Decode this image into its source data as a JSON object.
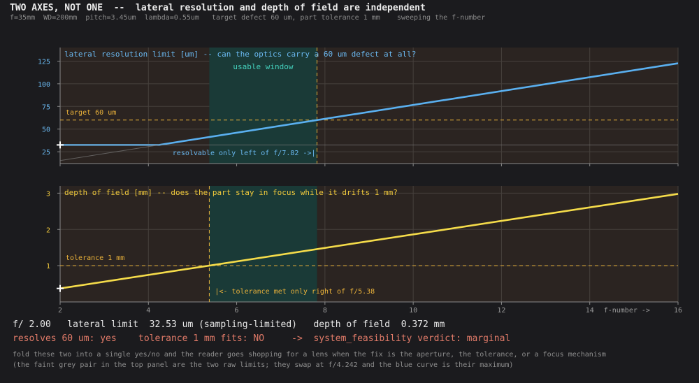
{
  "header": {
    "title": "TWO AXES, NOT ONE  --  lateral resolution and depth of field are independent",
    "subtitle": "f=35mm  WD=200mm  pitch=3.45um  lambda=0.55um   target defect 60 um, part tolerance 1 mm    sweeping the f-number"
  },
  "colors": {
    "panel_bg": "#2b2421",
    "window_fill": "#1a3a37",
    "resolution_line": "#5ab0f0",
    "dof_line": "#f5dc4a",
    "threshold_line": "#e9b13a",
    "grid": "#46403c",
    "verdict_text": "#e07a68"
  },
  "chart_data": [
    {
      "type": "line",
      "title": "lateral resolution limit [um]  --  can the optics carry a 60 um defect at all?",
      "xlim": [
        2,
        16
      ],
      "ylim": [
        12,
        140
      ],
      "yticks": [
        25,
        50,
        75,
        100,
        125
      ],
      "grid": true,
      "series": [
        {
          "role": "max",
          "x": [
            2,
            4.242,
            16
          ],
          "y": [
            32.53,
            32.53,
            122.6
          ]
        },
        {
          "role": "raw",
          "x": [
            2,
            4.242
          ],
          "y": [
            15.3,
            32.53
          ]
        },
        {
          "role": "raw",
          "x": [
            2,
            16
          ],
          "y": [
            32.53,
            32.53
          ]
        }
      ],
      "threshold": {
        "y": 60,
        "label": "target 60 um"
      },
      "window": {
        "x0": 5.38,
        "x1": 7.82,
        "label": "usable window"
      },
      "marker": {
        "x": 7.82,
        "annotation": "resolvable only left of f/7.82 ->|"
      },
      "cursor": {
        "x": 2.0,
        "y": 32.53
      }
    },
    {
      "type": "line",
      "title": "depth of field [mm]  --  does the part stay in focus while it drifts 1 mm?",
      "xlabel": "f-number ->",
      "xlim": [
        2,
        16
      ],
      "ylim": [
        0,
        3.2
      ],
      "xticks": [
        2,
        4,
        6,
        8,
        10,
        12,
        14,
        16
      ],
      "yticks": [
        1,
        2,
        3
      ],
      "grid": true,
      "series": [
        {
          "x": [
            2,
            16
          ],
          "y": [
            0.372,
            2.98
          ]
        }
      ],
      "threshold": {
        "y": 1,
        "label": "tolerance 1 mm"
      },
      "window": {
        "x0": 5.38,
        "x1": 7.82
      },
      "marker": {
        "x": 5.38,
        "annotation": "|<- tolerance met only right of f/5.38"
      },
      "cursor": {
        "x": 2.0,
        "y": 0.372
      }
    }
  ],
  "readout": {
    "line1": "f/ 2.00   lateral limit  32.53 um (sampling-limited)   depth of field  0.372 mm",
    "line2": "resolves 60 um: yes    tolerance 1 mm fits: NO     ->  system_feasibility verdict: marginal"
  },
  "footer": {
    "line1": "fold these two into a single yes/no and the reader goes shopping for a lens when the fix is the aperture, the tolerance, or a focus mechanism",
    "line2": "(the faint grey pair in the top panel are the two raw limits; they swap at f/4.242 and the blue curve is their maximum)"
  }
}
